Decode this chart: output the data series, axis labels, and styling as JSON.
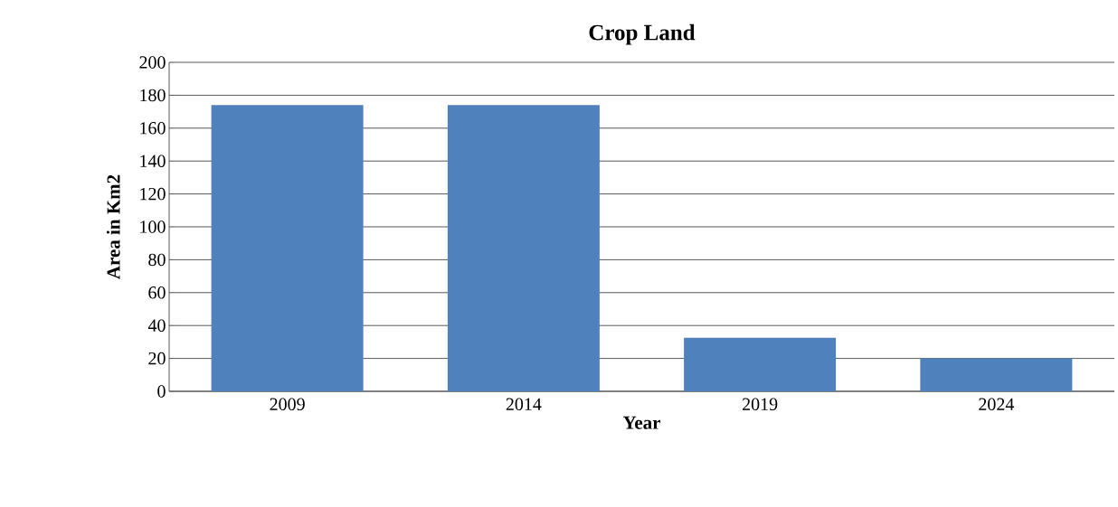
{
  "chart_data": {
    "type": "bar",
    "title": "Crop Land",
    "xlabel": "Year",
    "ylabel": "Area in Km2",
    "categories": [
      "2009",
      "2014",
      "2019",
      "2024"
    ],
    "values": [
      174,
      174,
      32.5,
      20
    ],
    "color": "#4f81bd",
    "ylim": [
      0,
      200
    ],
    "yticks": [
      0,
      20,
      40,
      60,
      80,
      100,
      120,
      140,
      160,
      180,
      200
    ],
    "grid": "y"
  }
}
